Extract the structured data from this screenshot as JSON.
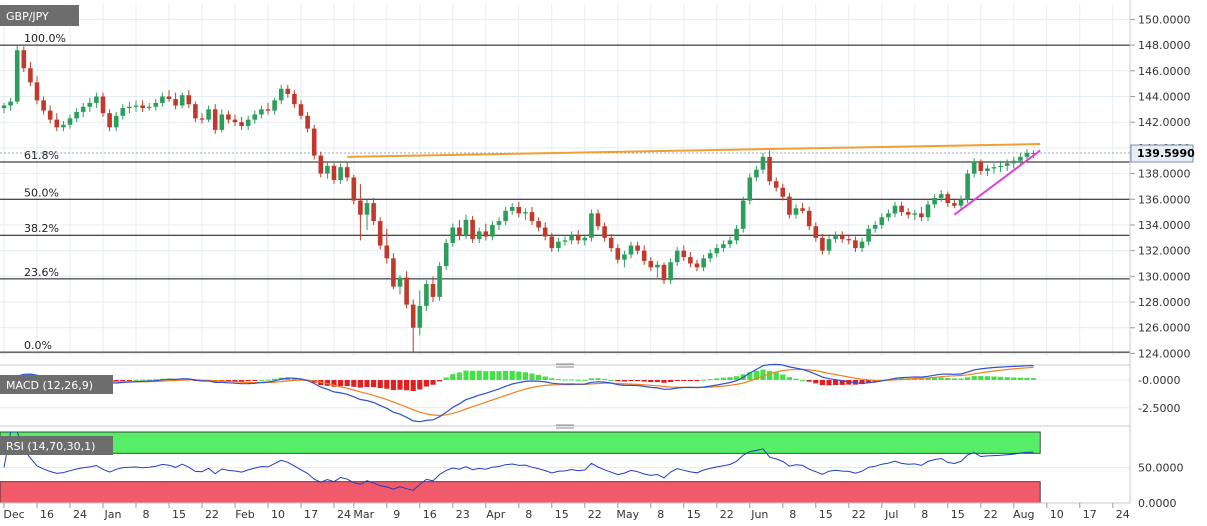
{
  "chart_data": [
    {
      "type": "candlestick",
      "title": "GBP/JPY",
      "ylim": [
        123.8,
        151.2
      ],
      "y_ticks": [
        "150.0000",
        "148.0000",
        "146.0000",
        "144.0000",
        "142.0000",
        "140.0000",
        "138.0000",
        "136.0000",
        "134.0000",
        "132.0000",
        "130.0000",
        "128.0000",
        "126.0000",
        "124.0000"
      ],
      "y_tick_values": [
        150,
        148,
        146,
        144,
        142,
        140,
        138,
        136,
        134,
        132,
        130,
        128,
        126,
        124
      ],
      "last_price": "139.5990",
      "last_value": 139.599,
      "fibonacci": [
        {
          "label": "100.0%",
          "value": 148.0
        },
        {
          "label": "61.8%",
          "value": 138.9
        },
        {
          "label": "50.0%",
          "value": 136.0
        },
        {
          "label": "38.2%",
          "value": 133.2
        },
        {
          "label": "23.6%",
          "value": 129.8
        },
        {
          "label": "0.0%",
          "value": 124.1
        }
      ],
      "trendlines": [
        {
          "name": "resistance",
          "color": "#f0a030",
          "x": [
            52,
            157
          ],
          "y": [
            139.3,
            140.3
          ]
        },
        {
          "name": "support",
          "color": "#e040e0",
          "x": [
            144,
            157
          ],
          "y": [
            134.8,
            139.8
          ]
        }
      ],
      "ohlc": [
        [
          143.1,
          143.5,
          142.7,
          143.3
        ],
        [
          143.3,
          143.9,
          142.9,
          143.6
        ],
        [
          143.6,
          148.0,
          143.4,
          147.6
        ],
        [
          147.6,
          147.9,
          145.9,
          146.2
        ],
        [
          146.2,
          146.7,
          144.8,
          145.1
        ],
        [
          145.1,
          145.6,
          143.4,
          143.7
        ],
        [
          143.7,
          144.0,
          142.6,
          142.9
        ],
        [
          142.9,
          143.3,
          141.9,
          142.2
        ],
        [
          142.2,
          142.7,
          141.3,
          141.6
        ],
        [
          141.6,
          142.1,
          141.3,
          141.8
        ],
        [
          141.8,
          142.6,
          141.5,
          142.3
        ],
        [
          142.3,
          143.1,
          142.0,
          142.8
        ],
        [
          142.8,
          143.5,
          142.4,
          143.2
        ],
        [
          143.2,
          143.9,
          142.8,
          143.5
        ],
        [
          143.5,
          144.3,
          143.1,
          144.0
        ],
        [
          144.0,
          144.3,
          142.4,
          142.7
        ],
        [
          142.7,
          143.0,
          141.3,
          141.6
        ],
        [
          141.6,
          142.8,
          141.3,
          142.5
        ],
        [
          142.5,
          143.4,
          142.2,
          143.1
        ],
        [
          143.1,
          143.6,
          142.7,
          143.2
        ],
        [
          143.2,
          143.7,
          142.8,
          143.3
        ],
        [
          143.3,
          143.7,
          142.8,
          143.1
        ],
        [
          143.1,
          143.5,
          142.9,
          143.2
        ],
        [
          143.2,
          143.8,
          142.9,
          143.5
        ],
        [
          143.5,
          144.3,
          143.2,
          144.0
        ],
        [
          144.0,
          144.5,
          143.6,
          143.8
        ],
        [
          143.8,
          144.3,
          143.0,
          143.3
        ],
        [
          143.3,
          144.3,
          143.1,
          144.1
        ],
        [
          144.1,
          144.5,
          143.1,
          143.4
        ],
        [
          143.4,
          143.6,
          142.0,
          142.3
        ],
        [
          142.3,
          142.7,
          141.9,
          142.2
        ],
        [
          142.2,
          143.3,
          142.0,
          143.0
        ],
        [
          143.0,
          143.4,
          141.1,
          141.4
        ],
        [
          141.4,
          143.0,
          141.2,
          142.6
        ],
        [
          142.6,
          142.9,
          141.9,
          142.2
        ],
        [
          142.2,
          142.6,
          141.7,
          142.0
        ],
        [
          142.0,
          142.4,
          141.4,
          141.7
        ],
        [
          141.7,
          142.5,
          141.4,
          142.2
        ],
        [
          142.2,
          142.9,
          141.9,
          142.6
        ],
        [
          142.6,
          143.3,
          142.3,
          143.0
        ],
        [
          143.0,
          143.5,
          142.6,
          142.9
        ],
        [
          142.9,
          143.9,
          142.6,
          143.7
        ],
        [
          143.7,
          144.9,
          143.4,
          144.6
        ],
        [
          144.6,
          144.9,
          143.9,
          144.2
        ],
        [
          144.2,
          144.5,
          143.1,
          143.4
        ],
        [
          143.4,
          143.7,
          142.2,
          142.5
        ],
        [
          142.5,
          142.8,
          141.2,
          141.5
        ],
        [
          141.5,
          141.8,
          139.1,
          139.4
        ],
        [
          139.4,
          139.7,
          137.7,
          138.0
        ],
        [
          138.0,
          138.9,
          137.6,
          138.6
        ],
        [
          138.6,
          138.8,
          137.2,
          137.5
        ],
        [
          137.5,
          138.8,
          137.2,
          138.5
        ],
        [
          138.5,
          138.9,
          137.4,
          137.7
        ],
        [
          137.7,
          137.9,
          135.6,
          135.9
        ],
        [
          135.9,
          137.2,
          132.8,
          134.8
        ],
        [
          134.8,
          136.0,
          133.6,
          135.7
        ],
        [
          135.7,
          136.1,
          134.0,
          134.3
        ],
        [
          134.3,
          134.6,
          132.1,
          132.4
        ],
        [
          132.4,
          133.7,
          131.0,
          131.4
        ],
        [
          131.4,
          131.8,
          129.0,
          129.2
        ],
        [
          129.2,
          130.1,
          128.6,
          129.9
        ],
        [
          129.9,
          130.4,
          127.5,
          127.8
        ],
        [
          127.8,
          128.2,
          124.1,
          126.0
        ],
        [
          126.0,
          128.9,
          125.4,
          127.7
        ],
        [
          127.7,
          129.7,
          127.3,
          129.4
        ],
        [
          129.4,
          130.0,
          128.0,
          128.4
        ],
        [
          128.4,
          131.1,
          128.1,
          130.8
        ],
        [
          130.8,
          132.9,
          130.5,
          132.6
        ],
        [
          132.6,
          134.1,
          132.3,
          133.8
        ],
        [
          133.8,
          134.4,
          132.8,
          133.2
        ],
        [
          133.2,
          134.8,
          132.9,
          134.4
        ],
        [
          134.4,
          134.7,
          132.6,
          132.9
        ],
        [
          132.9,
          133.8,
          132.6,
          133.5
        ],
        [
          133.5,
          134.1,
          132.8,
          133.1
        ],
        [
          133.1,
          134.3,
          132.8,
          134.0
        ],
        [
          134.0,
          134.6,
          133.6,
          134.3
        ],
        [
          134.3,
          135.4,
          134.0,
          135.1
        ],
        [
          135.1,
          135.7,
          134.8,
          135.4
        ],
        [
          135.4,
          135.8,
          134.6,
          134.9
        ],
        [
          134.9,
          135.3,
          134.4,
          135.0
        ],
        [
          135.0,
          135.4,
          134.0,
          134.3
        ],
        [
          134.3,
          134.6,
          133.5,
          133.8
        ],
        [
          133.8,
          134.2,
          132.8,
          133.1
        ],
        [
          133.1,
          133.4,
          131.9,
          132.2
        ],
        [
          132.2,
          133.0,
          131.9,
          132.7
        ],
        [
          132.7,
          133.1,
          132.4,
          132.8
        ],
        [
          132.8,
          133.5,
          132.5,
          133.2
        ],
        [
          133.2,
          133.6,
          132.5,
          132.8
        ],
        [
          132.8,
          133.2,
          132.4,
          133.0
        ],
        [
          133.0,
          135.2,
          132.7,
          134.9
        ],
        [
          134.9,
          135.2,
          133.6,
          133.9
        ],
        [
          133.9,
          134.2,
          132.7,
          133.0
        ],
        [
          133.0,
          133.3,
          131.9,
          132.2
        ],
        [
          132.2,
          132.5,
          131.0,
          131.3
        ],
        [
          131.3,
          132.0,
          130.7,
          131.7
        ],
        [
          131.7,
          132.7,
          131.4,
          132.4
        ],
        [
          132.4,
          132.7,
          131.7,
          132.0
        ],
        [
          132.0,
          132.4,
          130.9,
          131.2
        ],
        [
          131.2,
          131.5,
          130.4,
          130.7
        ],
        [
          130.7,
          131.2,
          129.9,
          130.9
        ],
        [
          130.9,
          131.1,
          129.4,
          129.7
        ],
        [
          129.7,
          131.4,
          129.4,
          131.1
        ],
        [
          131.1,
          132.3,
          130.8,
          132.0
        ],
        [
          132.0,
          132.4,
          131.2,
          131.5
        ],
        [
          131.5,
          131.9,
          130.7,
          131.0
        ],
        [
          131.0,
          131.3,
          130.4,
          130.7
        ],
        [
          130.7,
          131.7,
          130.4,
          131.4
        ],
        [
          131.4,
          132.1,
          131.1,
          131.8
        ],
        [
          131.8,
          132.5,
          131.5,
          132.2
        ],
        [
          132.2,
          132.8,
          131.9,
          132.5
        ],
        [
          132.5,
          133.1,
          132.2,
          132.8
        ],
        [
          132.8,
          134.0,
          132.5,
          133.7
        ],
        [
          133.7,
          136.2,
          133.4,
          135.9
        ],
        [
          135.9,
          138.0,
          135.6,
          137.7
        ],
        [
          137.7,
          138.6,
          137.4,
          138.3
        ],
        [
          138.3,
          139.6,
          138.0,
          139.3
        ],
        [
          139.3,
          139.8,
          137.1,
          137.4
        ],
        [
          137.4,
          137.7,
          136.6,
          136.9
        ],
        [
          136.9,
          137.2,
          135.9,
          136.2
        ],
        [
          136.2,
          136.5,
          134.5,
          134.8
        ],
        [
          134.8,
          135.6,
          134.5,
          135.3
        ],
        [
          135.3,
          135.7,
          134.9,
          135.1
        ],
        [
          135.1,
          135.4,
          133.6,
          133.9
        ],
        [
          133.9,
          134.2,
          132.7,
          133.0
        ],
        [
          133.0,
          133.3,
          131.7,
          132.0
        ],
        [
          132.0,
          133.2,
          131.7,
          132.9
        ],
        [
          132.9,
          133.5,
          132.6,
          133.2
        ],
        [
          133.2,
          133.5,
          132.6,
          132.9
        ],
        [
          132.9,
          133.2,
          132.5,
          132.8
        ],
        [
          132.8,
          133.1,
          131.9,
          132.2
        ],
        [
          132.2,
          133.0,
          131.9,
          132.7
        ],
        [
          132.7,
          134.0,
          132.4,
          133.7
        ],
        [
          133.7,
          134.3,
          133.4,
          134.0
        ],
        [
          134.0,
          134.9,
          133.7,
          134.6
        ],
        [
          134.6,
          135.2,
          134.3,
          134.9
        ],
        [
          134.9,
          135.8,
          134.6,
          135.5
        ],
        [
          135.5,
          135.8,
          134.7,
          135.0
        ],
        [
          135.0,
          135.3,
          134.5,
          134.8
        ],
        [
          134.8,
          135.2,
          134.4,
          134.9
        ],
        [
          134.9,
          135.4,
          134.3,
          134.6
        ],
        [
          134.6,
          135.9,
          134.3,
          135.6
        ],
        [
          135.6,
          136.4,
          135.3,
          136.1
        ],
        [
          136.1,
          136.7,
          135.8,
          136.4
        ],
        [
          136.4,
          136.6,
          135.4,
          135.7
        ],
        [
          135.7,
          136.0,
          135.3,
          135.5
        ],
        [
          135.5,
          136.3,
          135.2,
          136.0
        ],
        [
          136.0,
          138.3,
          135.7,
          138.0
        ],
        [
          138.0,
          139.2,
          137.7,
          138.9
        ],
        [
          138.9,
          139.1,
          137.9,
          138.2
        ],
        [
          138.2,
          138.7,
          137.8,
          138.4
        ],
        [
          138.4,
          138.8,
          138.0,
          138.5
        ],
        [
          138.5,
          139.0,
          138.1,
          138.6
        ],
        [
          138.6,
          139.1,
          138.2,
          138.8
        ],
        [
          138.8,
          139.3,
          138.4,
          139.0
        ],
        [
          139.0,
          139.6,
          138.6,
          139.3
        ],
        [
          139.3,
          139.9,
          139.0,
          139.6
        ],
        [
          139.6,
          139.8,
          139.2,
          139.6
        ]
      ]
    },
    {
      "type": "line",
      "title": "MACD (12,26,9)",
      "ylim": [
        -3.6,
        0.9
      ],
      "y_ticks": [
        "-0.0000",
        "-2.5000"
      ],
      "y_tick_values": [
        0,
        -2.5
      ],
      "series": [],
      "line_colors": {
        "macd": "#3050d0",
        "signal": "#f08020"
      },
      "hist_colors": {
        "positive": "#44e044",
        "negative": "#e02020"
      }
    },
    {
      "type": "line",
      "title": "RSI (14,70,30,1)",
      "ylim": [
        0,
        100
      ],
      "y_ticks": [
        "50.0000",
        "0.0000"
      ],
      "y_tick_values": [
        50,
        0
      ],
      "bands": {
        "overbought": 70,
        "oversold": 30,
        "upper_color": "#55ee66",
        "lower_color": "#f05a6a"
      },
      "line_color": "#2040c0",
      "series": []
    }
  ],
  "x_axis": {
    "labels": [
      "Dec",
      "16",
      "24",
      "Jan",
      "8",
      "15",
      "22",
      "Feb",
      "10",
      "17",
      "24",
      "Mar",
      "9",
      "16",
      "23",
      "Apr",
      "8",
      "15",
      "22",
      "May",
      "8",
      "15",
      "22",
      "Jun",
      "8",
      "15",
      "22",
      "Jul",
      "8",
      "15",
      "22",
      "Aug",
      "10",
      "17",
      "24"
    ],
    "positions": [
      0,
      5,
      10,
      15,
      20,
      25,
      30,
      35,
      40,
      45,
      50,
      53,
      58,
      63,
      68,
      73,
      78,
      83,
      88,
      93,
      98,
      103,
      108,
      113,
      118,
      123,
      128,
      133,
      138,
      143,
      148,
      153,
      158,
      163,
      168
    ]
  },
  "colors": {
    "up": "#2a9e5a",
    "down": "#c0392b",
    "grid": "#e6ecf4",
    "axis": "#999999"
  }
}
